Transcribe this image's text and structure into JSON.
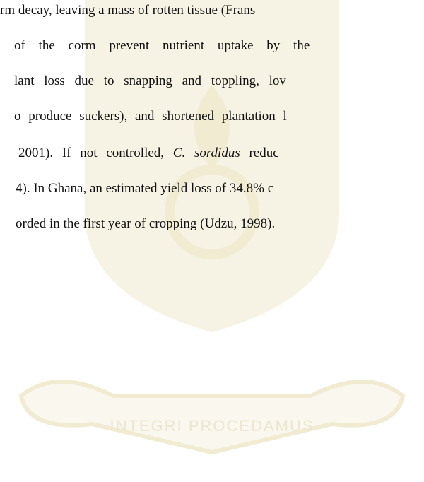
{
  "document": {
    "lines": [
      "rm decay, leaving a mass of rotten tissue (Frans",
      "of the corm prevent nutrient uptake by the",
      "lant loss due to snapping and toppling, lov",
      "o produce suckers), and shortened plantation l",
      [
        "2001). If not controlled, ",
        "C. sordidus",
        " reduc"
      ],
      "4). In Ghana, an estimated yield loss of 34.8% c",
      "orded in the first year of cropping (Udzu, 1998)."
    ],
    "watermark": "INTEGRI PROCEDAMUS"
  }
}
